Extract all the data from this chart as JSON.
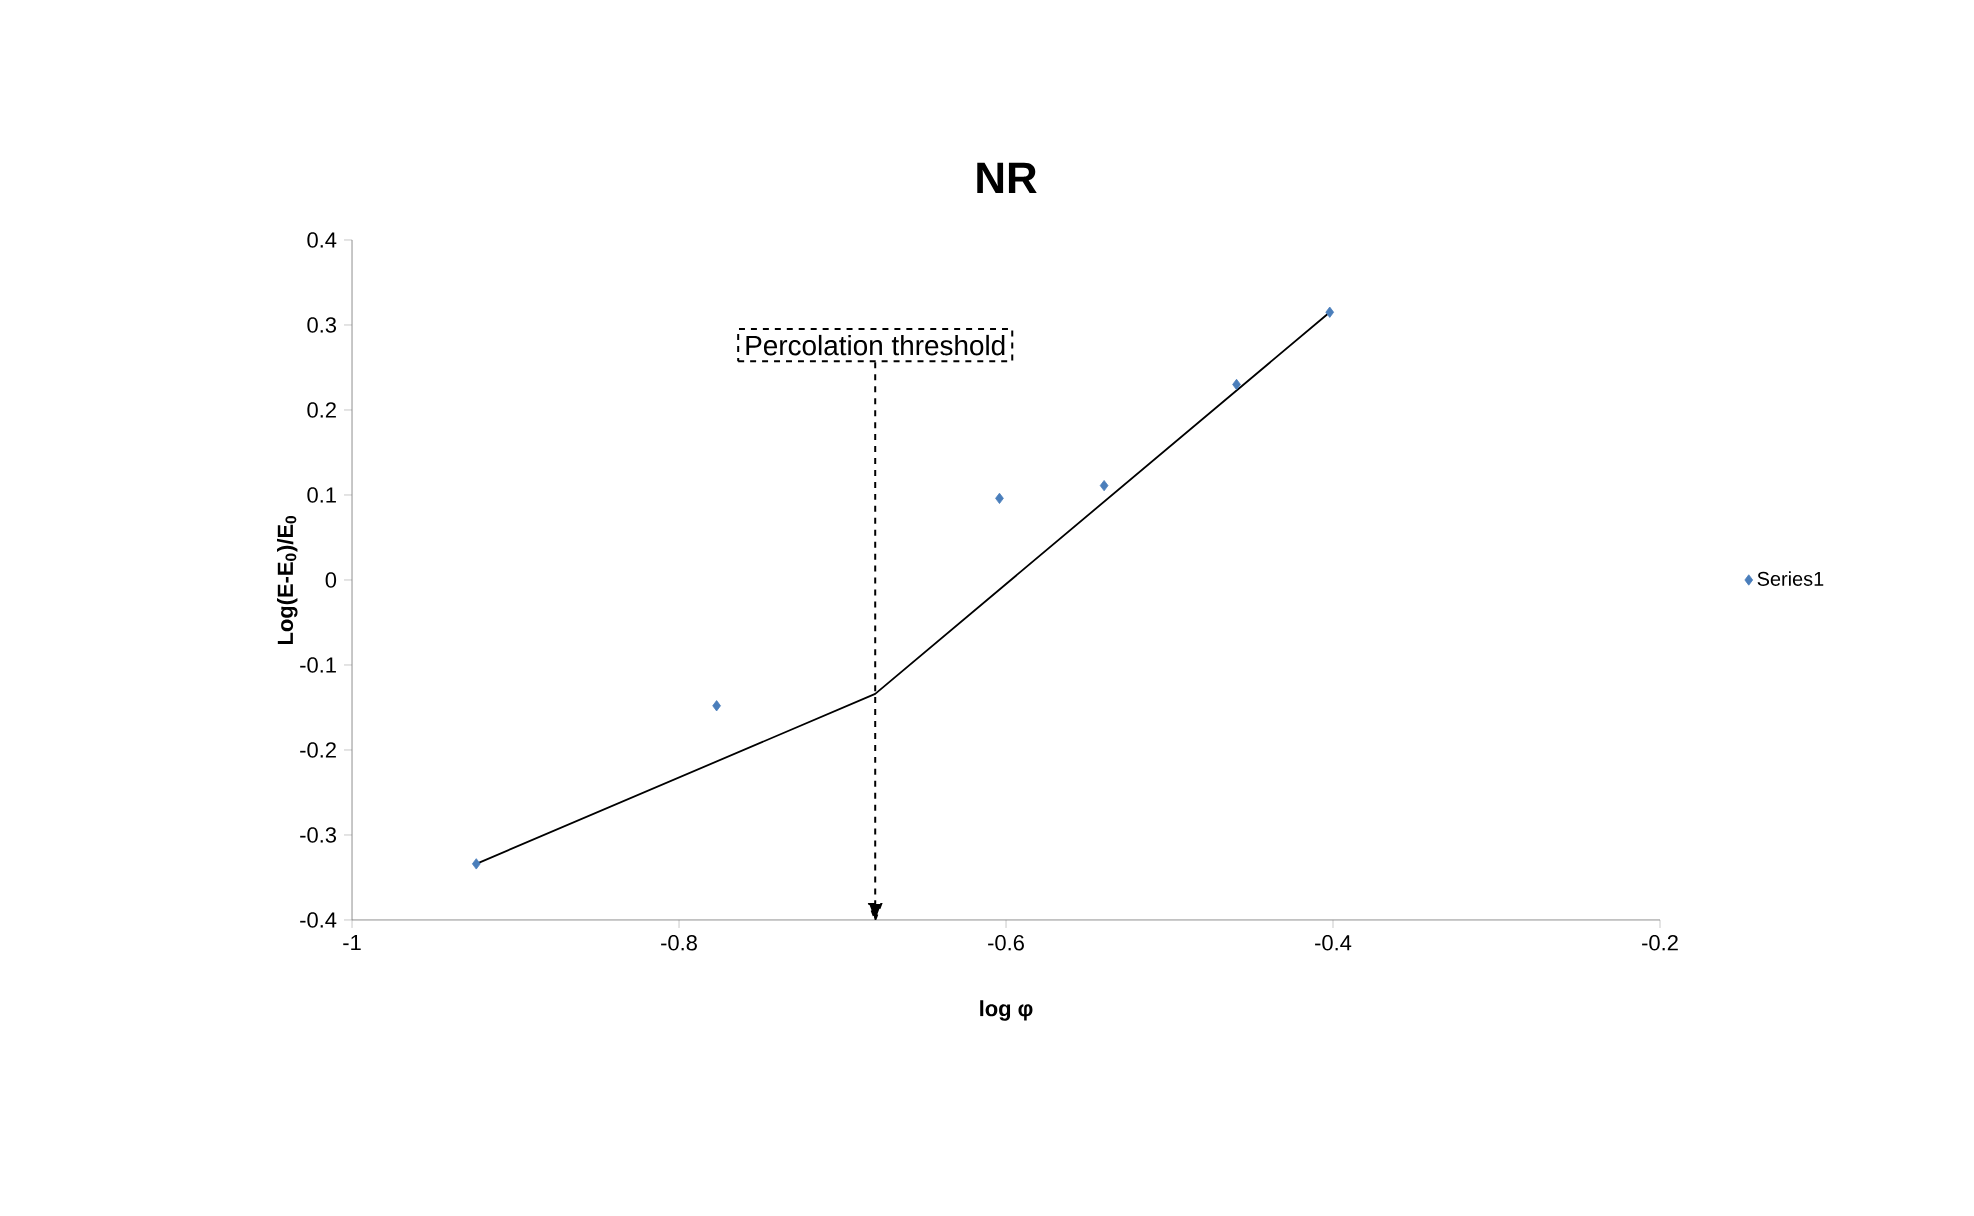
{
  "chart_data": {
    "type": "scatter",
    "title": "NR",
    "xlabel": "log φ",
    "ylabel": "Log(E-E$_{0}$)/E$_{0}$",
    "xlim": [
      -1,
      -0.2
    ],
    "ylim": [
      -0.4,
      0.4
    ],
    "xticks": [
      -1,
      -0.8,
      -0.6,
      -0.4,
      -0.2
    ],
    "yticks": [
      -0.4,
      -0.3,
      -0.2,
      -0.1,
      0,
      0.1,
      0.2,
      0.3,
      0.4
    ],
    "grid": false,
    "legend": "right",
    "series": [
      {
        "name": "Series1",
        "color": "#4a7ebb",
        "marker": "diamond",
        "x": [
          -0.924,
          -0.777,
          -0.604,
          -0.54,
          -0.459,
          -0.402
        ],
        "values": [
          -0.334,
          -0.148,
          0.096,
          0.111,
          0.23,
          0.315
        ]
      },
      {
        "type": "line",
        "color": "#000000",
        "marker": "none",
        "line_style": "solid",
        "x": [
          -0.924,
          -0.68,
          -0.402
        ],
        "values": [
          -0.334,
          -0.134,
          0.315
        ]
      }
    ],
    "ref_lines": [
      {
        "axis": "x",
        "value": -0.68,
        "label": "Percolation threshold",
        "line_style": "dashed",
        "color": "#000000"
      }
    ]
  }
}
